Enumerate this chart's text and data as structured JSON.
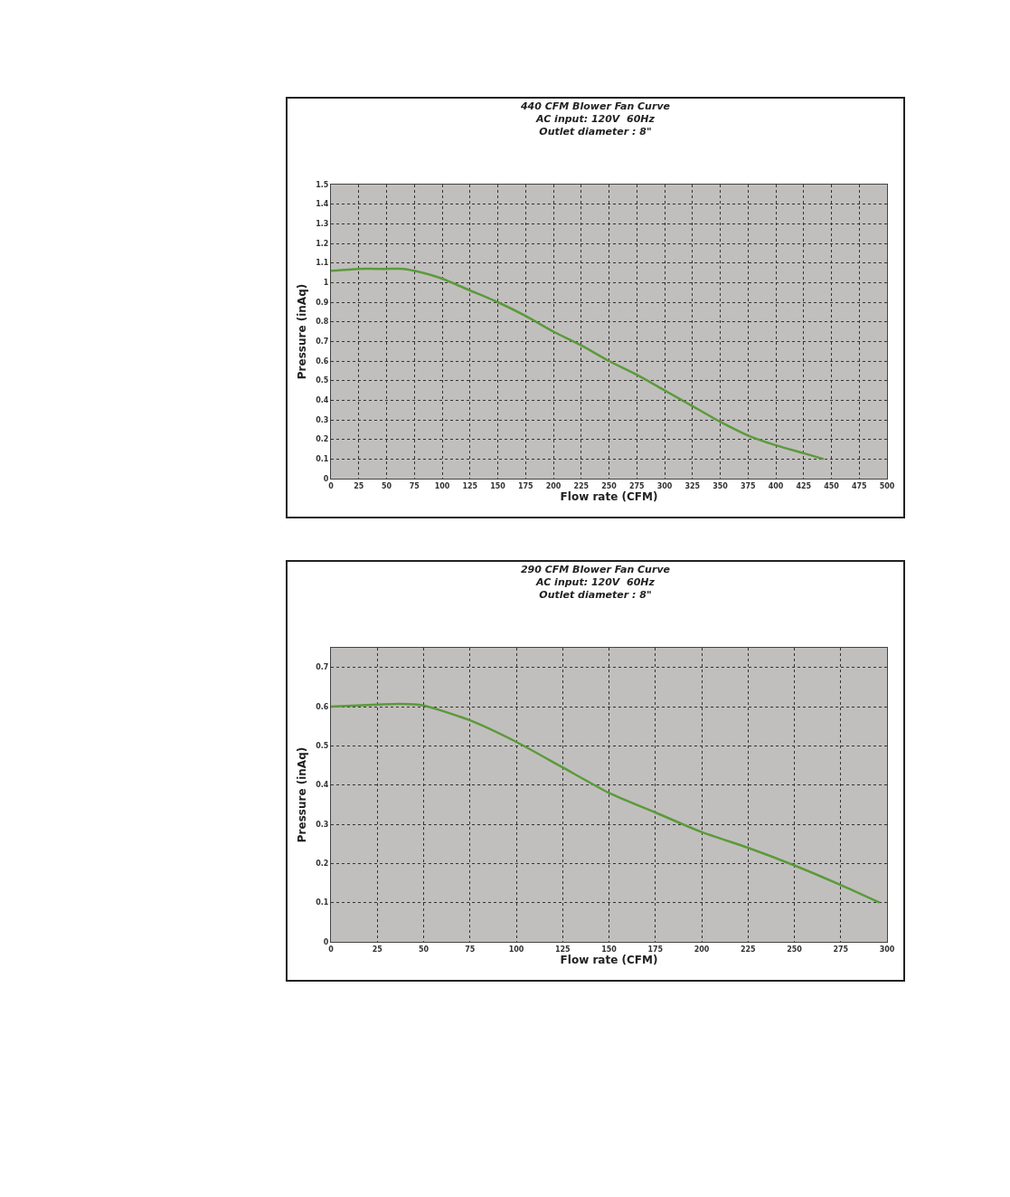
{
  "chart_data": [
    {
      "type": "line",
      "title": "440 CFM Blower Fan Curve",
      "subtitle": "AC input: 120V  60Hz\nOutlet diameter : 8\"",
      "xlabel": "Flow rate (CFM)",
      "ylabel": "Pressure (inAq)",
      "x": [
        0,
        25,
        50,
        65,
        75,
        100,
        125,
        150,
        175,
        200,
        225,
        250,
        275,
        300,
        325,
        350,
        375,
        400,
        425,
        443
      ],
      "series": [
        {
          "color": "#5b9a3c",
          "values": [
            1.06,
            1.07,
            1.07,
            1.07,
            1.06,
            1.02,
            0.96,
            0.9,
            0.83,
            0.75,
            0.68,
            0.6,
            0.53,
            0.45,
            0.37,
            0.29,
            0.22,
            0.17,
            0.13,
            0.1
          ]
        }
      ],
      "xlim": [
        0,
        500
      ],
      "xticks": [
        0,
        25,
        50,
        75,
        100,
        125,
        150,
        175,
        200,
        225,
        250,
        275,
        300,
        325,
        350,
        375,
        400,
        425,
        450,
        475,
        500
      ],
      "ylim": [
        0,
        1.5
      ],
      "yticks": [
        0,
        0.1,
        0.2,
        0.3,
        0.4,
        0.5,
        0.6,
        0.7,
        0.8,
        0.9,
        1,
        1.1,
        1.2,
        1.3,
        1.4,
        1.5
      ],
      "grid": true,
      "marker": "none",
      "line_style": "solid"
    },
    {
      "type": "line",
      "title": "290 CFM Blower Fan Curve",
      "subtitle": "AC input: 120V  60Hz\nOutlet diameter : 8\"",
      "xlabel": "Flow rate (CFM)",
      "ylabel": "Pressure (inAq)",
      "x": [
        0,
        25,
        37,
        50,
        75,
        100,
        125,
        150,
        175,
        200,
        225,
        250,
        275,
        296
      ],
      "series": [
        {
          "color": "#5b9a3c",
          "values": [
            0.6,
            0.605,
            0.607,
            0.603,
            0.565,
            0.51,
            0.445,
            0.38,
            0.33,
            0.28,
            0.24,
            0.195,
            0.145,
            0.1
          ]
        }
      ],
      "xlim": [
        0,
        300
      ],
      "xticks": [
        0,
        25,
        50,
        75,
        100,
        125,
        150,
        175,
        200,
        225,
        250,
        275,
        300
      ],
      "ylim": [
        0,
        0.75
      ],
      "yticks": [
        0,
        0.1,
        0.2,
        0.3,
        0.4,
        0.5,
        0.6,
        0.7
      ],
      "grid": true,
      "marker": "none",
      "line_style": "solid"
    }
  ]
}
